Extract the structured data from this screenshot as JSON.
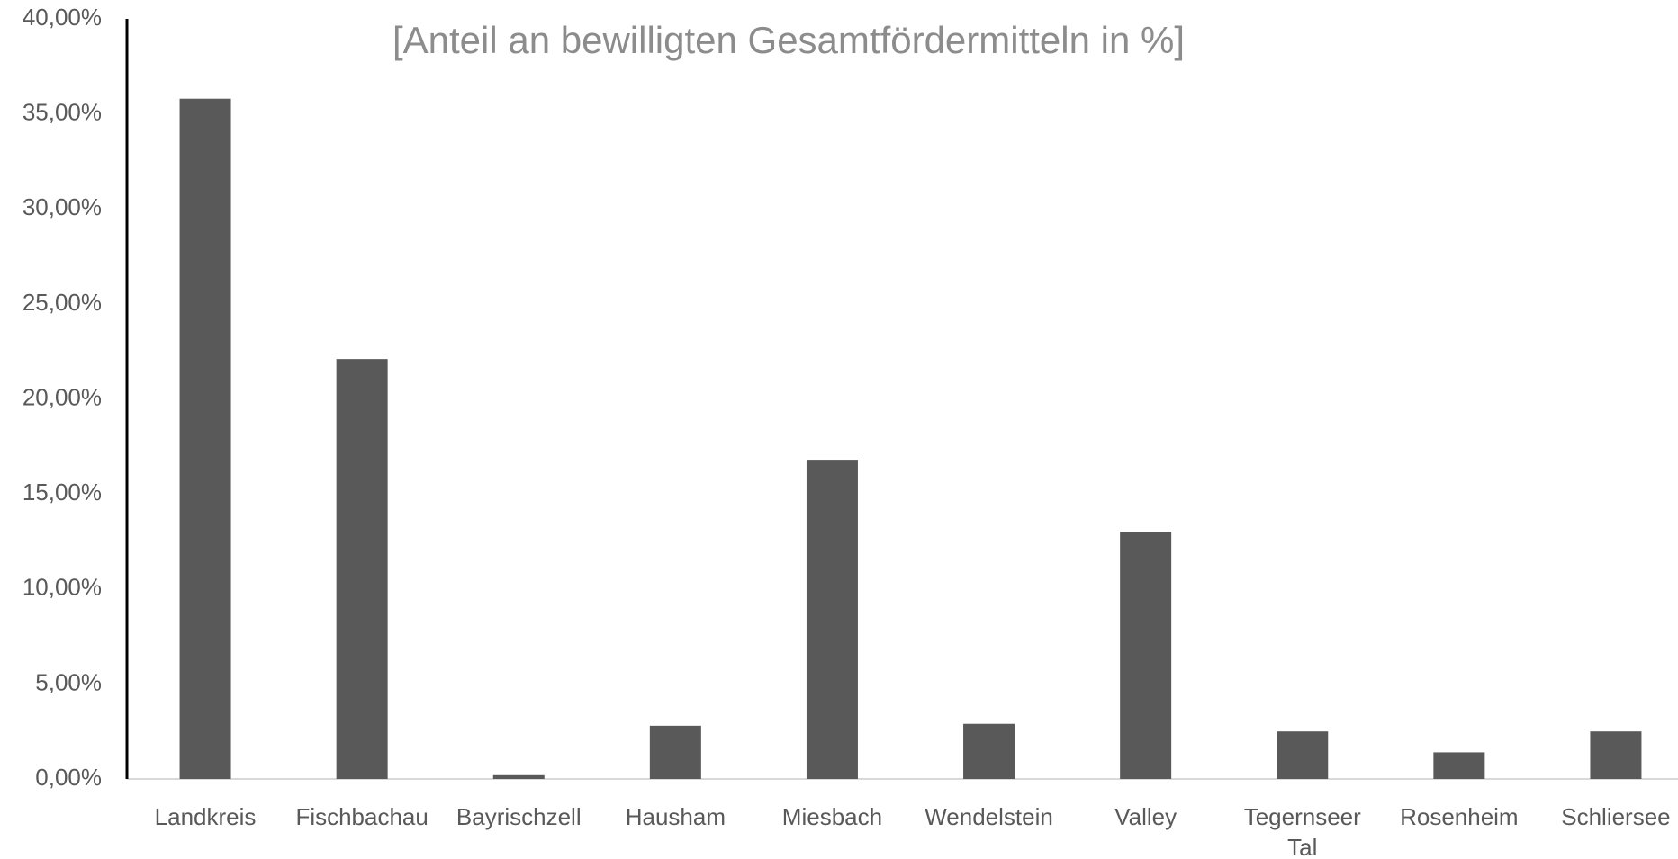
{
  "chart_data": {
    "type": "bar",
    "subtitle": "[Anteil an bewilligten Gesamtfördermitteln in %]",
    "categories": [
      "Landkreis",
      "Fischbachau",
      "Bayrischzell",
      "Hausham",
      "Miesbach",
      "Wendelstein",
      "Valley",
      "Tegernseer Tal",
      "Rosenheim",
      "Schliersee"
    ],
    "values": [
      35.8,
      22.1,
      0.2,
      2.8,
      16.8,
      2.9,
      13.0,
      2.5,
      1.4,
      2.5
    ],
    "color": "#595959",
    "ylim": [
      0,
      40
    ],
    "yticks": [
      {
        "value": 0,
        "label": "0,00%"
      },
      {
        "value": 5,
        "label": "5,00%"
      },
      {
        "value": 10,
        "label": "10,00%"
      },
      {
        "value": 15,
        "label": "15,00%"
      },
      {
        "value": 20,
        "label": "20,00%"
      },
      {
        "value": 25,
        "label": "25,00%"
      },
      {
        "value": 30,
        "label": "30,00%"
      },
      {
        "value": 35,
        "label": "35,00%"
      },
      {
        "value": 40,
        "label": "40,00%"
      }
    ],
    "grid": false
  }
}
